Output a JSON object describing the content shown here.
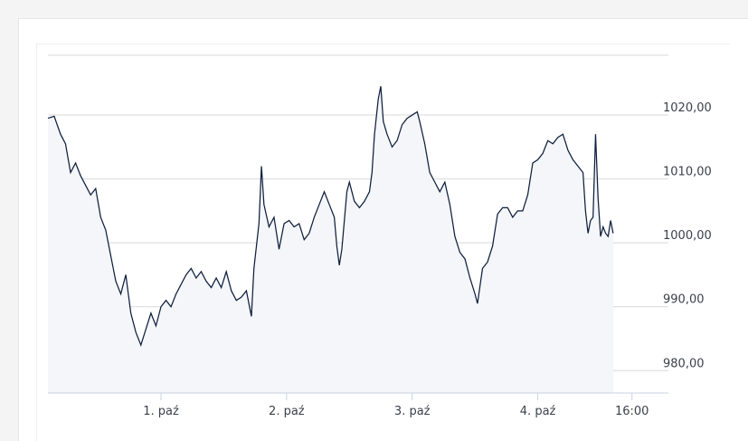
{
  "chart_data": {
    "type": "area",
    "title": "",
    "xlabel": "",
    "ylabel": "",
    "ylim": [
      976.5,
      1029.5
    ],
    "x_tick_labels": [
      "1. paź",
      "2. paź",
      "3. paź",
      "4. paź",
      "16:00"
    ],
    "x_tick_positions": [
      0.9,
      1.9,
      2.9,
      3.9,
      4.65
    ],
    "y_tick_labels": [
      "980,00",
      "990,00",
      "1000,00",
      "1010,00",
      "1020,00"
    ],
    "y_tick_values": [
      980,
      990,
      1000,
      1010,
      1020
    ],
    "grid": true,
    "legend": "none",
    "colors": {
      "line": "#0f1f3d",
      "fill": "#f4f6f9",
      "grid": "#d9d9d9",
      "axis": "#c8d2e0"
    },
    "x_range": [
      0,
      4.94
    ],
    "series_points": [
      [
        0.0,
        1019.5
      ],
      [
        0.05,
        1019.8
      ],
      [
        0.1,
        1017.0
      ],
      [
        0.14,
        1015.5
      ],
      [
        0.18,
        1011.0
      ],
      [
        0.22,
        1012.5
      ],
      [
        0.26,
        1010.5
      ],
      [
        0.3,
        1009.0
      ],
      [
        0.34,
        1007.5
      ],
      [
        0.38,
        1008.5
      ],
      [
        0.42,
        1004.0
      ],
      [
        0.46,
        1002.0
      ],
      [
        0.5,
        998.0
      ],
      [
        0.54,
        994.0
      ],
      [
        0.58,
        992.0
      ],
      [
        0.62,
        995.0
      ],
      [
        0.66,
        989.0
      ],
      [
        0.7,
        986.0
      ],
      [
        0.74,
        984.0
      ],
      [
        0.78,
        986.5
      ],
      [
        0.82,
        989.0
      ],
      [
        0.86,
        987.0
      ],
      [
        0.9,
        990.0
      ],
      [
        0.94,
        991.0
      ],
      [
        0.98,
        990.0
      ],
      [
        1.02,
        992.0
      ],
      [
        1.06,
        993.5
      ],
      [
        1.1,
        995.0
      ],
      [
        1.14,
        996.0
      ],
      [
        1.18,
        994.5
      ],
      [
        1.22,
        995.5
      ],
      [
        1.26,
        994.0
      ],
      [
        1.3,
        993.0
      ],
      [
        1.34,
        994.5
      ],
      [
        1.38,
        993.0
      ],
      [
        1.42,
        995.5
      ],
      [
        1.46,
        992.5
      ],
      [
        1.5,
        991.0
      ],
      [
        1.54,
        991.5
      ],
      [
        1.58,
        992.5
      ],
      [
        1.62,
        988.5
      ],
      [
        1.64,
        996.0
      ],
      [
        1.68,
        1003.0
      ],
      [
        1.7,
        1012.0
      ],
      [
        1.72,
        1006.0
      ],
      [
        1.76,
        1002.5
      ],
      [
        1.8,
        1004.0
      ],
      [
        1.84,
        999.0
      ],
      [
        1.88,
        1003.0
      ],
      [
        1.92,
        1003.5
      ],
      [
        1.96,
        1002.5
      ],
      [
        2.0,
        1003.0
      ],
      [
        2.04,
        1000.5
      ],
      [
        2.08,
        1001.5
      ],
      [
        2.12,
        1004.0
      ],
      [
        2.16,
        1006.0
      ],
      [
        2.2,
        1008.0
      ],
      [
        2.24,
        1006.0
      ],
      [
        2.28,
        1004.0
      ],
      [
        2.3,
        999.5
      ],
      [
        2.32,
        996.5
      ],
      [
        2.34,
        999.0
      ],
      [
        2.38,
        1008.0
      ],
      [
        2.4,
        1009.5
      ],
      [
        2.44,
        1006.5
      ],
      [
        2.48,
        1005.5
      ],
      [
        2.52,
        1006.5
      ],
      [
        2.56,
        1008.0
      ],
      [
        2.58,
        1011.0
      ],
      [
        2.6,
        1017.0
      ],
      [
        2.63,
        1022.5
      ],
      [
        2.65,
        1024.5
      ],
      [
        2.67,
        1019.0
      ],
      [
        2.7,
        1017.0
      ],
      [
        2.74,
        1015.0
      ],
      [
        2.78,
        1016.0
      ],
      [
        2.82,
        1018.5
      ],
      [
        2.86,
        1019.5
      ],
      [
        2.9,
        1020.0
      ],
      [
        2.94,
        1020.5
      ],
      [
        2.96,
        1019.0
      ],
      [
        3.0,
        1015.5
      ],
      [
        3.04,
        1011.0
      ],
      [
        3.08,
        1009.5
      ],
      [
        3.12,
        1008.0
      ],
      [
        3.16,
        1009.5
      ],
      [
        3.2,
        1006.0
      ],
      [
        3.24,
        1001.0
      ],
      [
        3.28,
        998.5
      ],
      [
        3.32,
        997.5
      ],
      [
        3.36,
        994.5
      ],
      [
        3.4,
        992.0
      ],
      [
        3.42,
        990.5
      ],
      [
        3.46,
        996.0
      ],
      [
        3.5,
        997.0
      ],
      [
        3.54,
        999.5
      ],
      [
        3.58,
        1004.5
      ],
      [
        3.62,
        1005.5
      ],
      [
        3.66,
        1005.5
      ],
      [
        3.7,
        1004.0
      ],
      [
        3.74,
        1005.0
      ],
      [
        3.78,
        1005.0
      ],
      [
        3.82,
        1007.5
      ],
      [
        3.86,
        1012.5
      ],
      [
        3.9,
        1013.0
      ],
      [
        3.94,
        1014.0
      ],
      [
        3.98,
        1016.0
      ],
      [
        4.02,
        1015.5
      ],
      [
        4.06,
        1016.5
      ],
      [
        4.1,
        1017.0
      ],
      [
        4.14,
        1014.5
      ],
      [
        4.18,
        1013.0
      ],
      [
        4.22,
        1012.0
      ],
      [
        4.26,
        1011.0
      ],
      [
        4.28,
        1005.0
      ],
      [
        4.3,
        1001.5
      ],
      [
        4.32,
        1003.5
      ],
      [
        4.34,
        1004.0
      ],
      [
        4.36,
        1017.0
      ],
      [
        4.38,
        1007.0
      ],
      [
        4.4,
        1001.0
      ],
      [
        4.42,
        1002.5
      ],
      [
        4.44,
        1001.5
      ],
      [
        4.46,
        1001.0
      ],
      [
        4.48,
        1003.5
      ],
      [
        4.5,
        1001.5
      ]
    ]
  }
}
